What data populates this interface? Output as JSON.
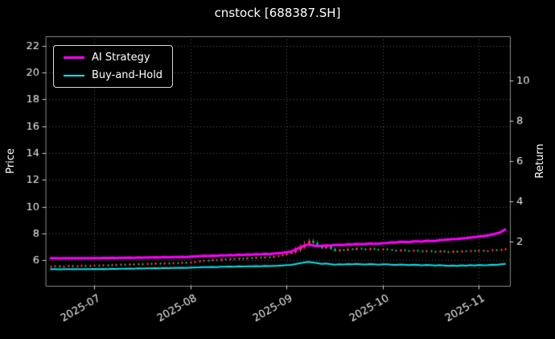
{
  "chart": {
    "title": "cnstock [688387.SH]",
    "background": "#000000",
    "text_color": "#e8e8e8",
    "grid_color": "#565656",
    "spine_color": "#8a8a8a",
    "tick_color": "#cccccc"
  },
  "legend": {
    "items": [
      {
        "label": "AI Strategy",
        "color": "#ff00ff",
        "linewidth": 3
      },
      {
        "label": "Buy-and-Hold",
        "color": "#00e5ee",
        "linewidth": 2
      }
    ]
  },
  "chart_data": {
    "type": "candlestick+line",
    "title": "cnstock [688387.SH]",
    "ylabel_left": "Price",
    "ylabel_right": "Return",
    "ylim_price": [
      4.1,
      22.7
    ],
    "ylim_return": [
      -0.2,
      12.2
    ],
    "yticks_price": [
      6,
      8,
      10,
      12,
      14,
      16,
      18,
      20,
      22
    ],
    "yticks_return": [
      2,
      4,
      6,
      8,
      10
    ],
    "xticks": [
      {
        "index": 10,
        "label": "2025-07"
      },
      {
        "index": 32,
        "label": "2025-08"
      },
      {
        "index": 54,
        "label": "2025-09"
      },
      {
        "index": 76,
        "label": "2025-10"
      },
      {
        "index": 98,
        "label": "2025-11"
      }
    ],
    "up_color": "#ff3333",
    "down_color": "#00b060",
    "ohlc": [
      [
        5.53,
        5.62,
        5.46,
        5.55
      ],
      [
        5.55,
        5.65,
        5.48,
        5.58
      ],
      [
        5.58,
        5.65,
        5.45,
        5.52
      ],
      [
        5.52,
        5.63,
        5.45,
        5.56
      ],
      [
        5.56,
        5.67,
        5.49,
        5.6
      ],
      [
        5.6,
        5.67,
        5.48,
        5.55
      ],
      [
        5.55,
        5.65,
        5.48,
        5.58
      ],
      [
        5.58,
        5.69,
        5.51,
        5.62
      ],
      [
        5.62,
        5.69,
        5.5,
        5.57
      ],
      [
        5.57,
        5.67,
        5.5,
        5.6
      ],
      [
        5.6,
        5.7,
        5.53,
        5.63
      ],
      [
        5.63,
        5.7,
        5.53,
        5.6
      ],
      [
        5.6,
        5.72,
        5.53,
        5.65
      ],
      [
        5.65,
        5.72,
        5.55,
        5.62
      ],
      [
        5.62,
        5.75,
        5.55,
        5.68
      ],
      [
        5.68,
        5.75,
        5.57,
        5.64
      ],
      [
        5.64,
        5.77,
        5.57,
        5.7
      ],
      [
        5.7,
        5.77,
        5.59,
        5.66
      ],
      [
        5.66,
        5.79,
        5.59,
        5.72
      ],
      [
        5.72,
        5.79,
        5.61,
        5.68
      ],
      [
        5.68,
        5.81,
        5.61,
        5.74
      ],
      [
        5.74,
        5.81,
        5.63,
        5.7
      ],
      [
        5.7,
        5.83,
        5.63,
        5.76
      ],
      [
        5.76,
        5.83,
        5.65,
        5.72
      ],
      [
        5.72,
        5.85,
        5.65,
        5.78
      ],
      [
        5.78,
        5.85,
        5.67,
        5.74
      ],
      [
        5.74,
        5.87,
        5.67,
        5.8
      ],
      [
        5.8,
        5.87,
        5.69,
        5.76
      ],
      [
        5.76,
        5.89,
        5.69,
        5.82
      ],
      [
        5.82,
        5.89,
        5.71,
        5.78
      ],
      [
        5.78,
        5.91,
        5.71,
        5.84
      ],
      [
        5.84,
        5.91,
        5.73,
        5.8
      ],
      [
        5.8,
        5.93,
        5.73,
        5.86
      ],
      [
        5.86,
        5.97,
        5.79,
        5.9
      ],
      [
        5.9,
        6.02,
        5.83,
        5.95
      ],
      [
        5.95,
        6.07,
        5.88,
        6.0
      ],
      [
        6.0,
        6.07,
        5.89,
        5.96
      ],
      [
        5.96,
        6.12,
        5.89,
        6.05
      ],
      [
        6.05,
        6.12,
        5.93,
        6.0
      ],
      [
        6.0,
        6.17,
        5.93,
        6.1
      ],
      [
        6.1,
        6.17,
        5.98,
        6.05
      ],
      [
        6.05,
        6.19,
        5.98,
        6.12
      ],
      [
        6.12,
        6.19,
        6.01,
        6.08
      ],
      [
        6.08,
        6.22,
        6.01,
        6.15
      ],
      [
        6.15,
        6.22,
        6.03,
        6.1
      ],
      [
        6.1,
        6.25,
        6.03,
        6.18
      ],
      [
        6.18,
        6.25,
        6.07,
        6.14
      ],
      [
        6.14,
        6.29,
        6.07,
        6.22
      ],
      [
        6.22,
        6.29,
        6.11,
        6.18
      ],
      [
        6.18,
        6.33,
        6.11,
        6.26
      ],
      [
        6.26,
        6.33,
        6.15,
        6.22
      ],
      [
        6.22,
        6.37,
        6.15,
        6.3
      ],
      [
        6.3,
        6.42,
        6.23,
        6.35
      ],
      [
        6.35,
        6.49,
        6.28,
        6.42
      ],
      [
        6.42,
        6.57,
        6.35,
        6.5
      ],
      [
        6.5,
        6.67,
        6.43,
        6.6
      ],
      [
        6.6,
        7.0,
        6.48,
        6.75
      ],
      [
        6.75,
        7.2,
        6.63,
        6.95
      ],
      [
        6.95,
        7.45,
        6.83,
        7.2
      ],
      [
        7.2,
        7.6,
        7.08,
        7.45
      ],
      [
        7.45,
        7.6,
        7.18,
        7.3
      ],
      [
        7.3,
        7.45,
        6.98,
        7.1
      ],
      [
        7.1,
        7.17,
        6.83,
        6.9
      ],
      [
        6.9,
        7.12,
        6.83,
        7.05
      ],
      [
        7.05,
        7.12,
        6.78,
        6.85
      ],
      [
        6.85,
        6.92,
        6.63,
        6.7
      ],
      [
        6.7,
        6.87,
        6.63,
        6.8
      ],
      [
        6.8,
        6.87,
        6.68,
        6.75
      ],
      [
        6.75,
        6.92,
        6.68,
        6.85
      ],
      [
        6.85,
        6.92,
        6.73,
        6.8
      ],
      [
        6.8,
        6.97,
        6.73,
        6.9
      ],
      [
        6.9,
        6.97,
        6.78,
        6.85
      ],
      [
        6.85,
        6.92,
        6.73,
        6.8
      ],
      [
        6.8,
        6.95,
        6.73,
        6.88
      ],
      [
        6.88,
        6.95,
        6.75,
        6.82
      ],
      [
        6.82,
        6.89,
        6.71,
        6.78
      ],
      [
        6.78,
        6.92,
        6.71,
        6.85
      ],
      [
        6.85,
        6.92,
        6.73,
        6.8
      ],
      [
        6.8,
        6.87,
        6.68,
        6.75
      ],
      [
        6.75,
        6.82,
        6.63,
        6.7
      ],
      [
        6.7,
        6.85,
        6.63,
        6.78
      ],
      [
        6.78,
        6.85,
        6.65,
        6.72
      ],
      [
        6.72,
        6.79,
        6.61,
        6.68
      ],
      [
        6.68,
        6.82,
        6.61,
        6.75
      ],
      [
        6.75,
        6.82,
        6.63,
        6.7
      ],
      [
        6.7,
        6.77,
        6.58,
        6.65
      ],
      [
        6.65,
        6.79,
        6.58,
        6.72
      ],
      [
        6.72,
        6.79,
        6.59,
        6.66
      ],
      [
        6.66,
        6.73,
        6.55,
        6.62
      ],
      [
        6.62,
        6.77,
        6.55,
        6.7
      ],
      [
        6.7,
        6.77,
        6.57,
        6.64
      ],
      [
        6.64,
        6.71,
        6.53,
        6.6
      ],
      [
        6.6,
        6.75,
        6.53,
        6.68
      ],
      [
        6.68,
        6.75,
        6.56,
        6.63
      ],
      [
        6.63,
        6.77,
        6.56,
        6.7
      ],
      [
        6.7,
        6.77,
        6.59,
        6.66
      ],
      [
        6.66,
        6.79,
        6.59,
        6.72
      ],
      [
        6.72,
        6.79,
        6.61,
        6.68
      ],
      [
        6.68,
        6.81,
        6.61,
        6.74
      ],
      [
        6.74,
        6.81,
        6.63,
        6.7
      ],
      [
        6.7,
        6.79,
        6.63,
        6.72
      ],
      [
        6.72,
        6.85,
        6.65,
        6.78
      ],
      [
        6.78,
        6.85,
        6.67,
        6.74
      ],
      [
        6.74,
        6.87,
        6.67,
        6.8
      ],
      [
        6.8,
        6.92,
        6.73,
        6.85
      ]
    ],
    "series": [
      {
        "name": "AI Strategy",
        "axis": "price",
        "color": "#ff00ff",
        "linewidth": 3,
        "values": [
          6.15,
          6.15,
          6.14,
          6.15,
          6.16,
          6.15,
          6.15,
          6.16,
          6.15,
          6.16,
          6.17,
          6.16,
          6.17,
          6.17,
          6.18,
          6.17,
          6.19,
          6.18,
          6.2,
          6.19,
          6.21,
          6.2,
          6.22,
          6.21,
          6.23,
          6.22,
          6.24,
          6.23,
          6.25,
          6.24,
          6.26,
          6.25,
          6.27,
          6.29,
          6.31,
          6.33,
          6.32,
          6.35,
          6.34,
          6.38,
          6.36,
          6.4,
          6.38,
          6.42,
          6.4,
          6.44,
          6.42,
          6.46,
          6.44,
          6.48,
          6.46,
          6.5,
          6.53,
          6.56,
          6.6,
          6.65,
          6.8,
          6.95,
          7.08,
          7.18,
          7.12,
          7.05,
          7.08,
          7.12,
          7.1,
          7.14,
          7.16,
          7.15,
          7.19,
          7.18,
          7.22,
          7.21,
          7.2,
          7.25,
          7.24,
          7.23,
          7.28,
          7.3,
          7.34,
          7.33,
          7.38,
          7.37,
          7.36,
          7.42,
          7.41,
          7.4,
          7.46,
          7.45,
          7.44,
          7.5,
          7.52,
          7.55,
          7.58,
          7.6,
          7.63,
          7.66,
          7.7,
          7.73,
          7.77,
          7.8,
          7.85,
          7.92,
          8.0,
          8.1,
          8.3
        ]
      },
      {
        "name": "Buy-and-Hold",
        "axis": "price",
        "color": "#00e5ee",
        "linewidth": 2,
        "values": [
          5.35,
          5.34,
          5.33,
          5.34,
          5.35,
          5.34,
          5.34,
          5.35,
          5.34,
          5.35,
          5.36,
          5.35,
          5.36,
          5.35,
          5.37,
          5.36,
          5.38,
          5.37,
          5.39,
          5.38,
          5.4,
          5.39,
          5.41,
          5.4,
          5.42,
          5.41,
          5.43,
          5.42,
          5.44,
          5.43,
          5.45,
          5.44,
          5.46,
          5.47,
          5.48,
          5.5,
          5.49,
          5.51,
          5.5,
          5.53,
          5.52,
          5.54,
          5.53,
          5.55,
          5.54,
          5.56,
          5.55,
          5.57,
          5.56,
          5.58,
          5.57,
          5.59,
          5.6,
          5.62,
          5.64,
          5.66,
          5.72,
          5.78,
          5.84,
          5.88,
          5.84,
          5.79,
          5.74,
          5.77,
          5.72,
          5.68,
          5.71,
          5.69,
          5.72,
          5.7,
          5.73,
          5.71,
          5.69,
          5.72,
          5.7,
          5.68,
          5.71,
          5.7,
          5.68,
          5.66,
          5.69,
          5.67,
          5.65,
          5.68,
          5.66,
          5.63,
          5.66,
          5.64,
          5.61,
          5.64,
          5.61,
          5.58,
          5.62,
          5.59,
          5.63,
          5.6,
          5.64,
          5.62,
          5.66,
          5.63,
          5.65,
          5.68,
          5.66,
          5.7,
          5.73
        ]
      }
    ]
  }
}
